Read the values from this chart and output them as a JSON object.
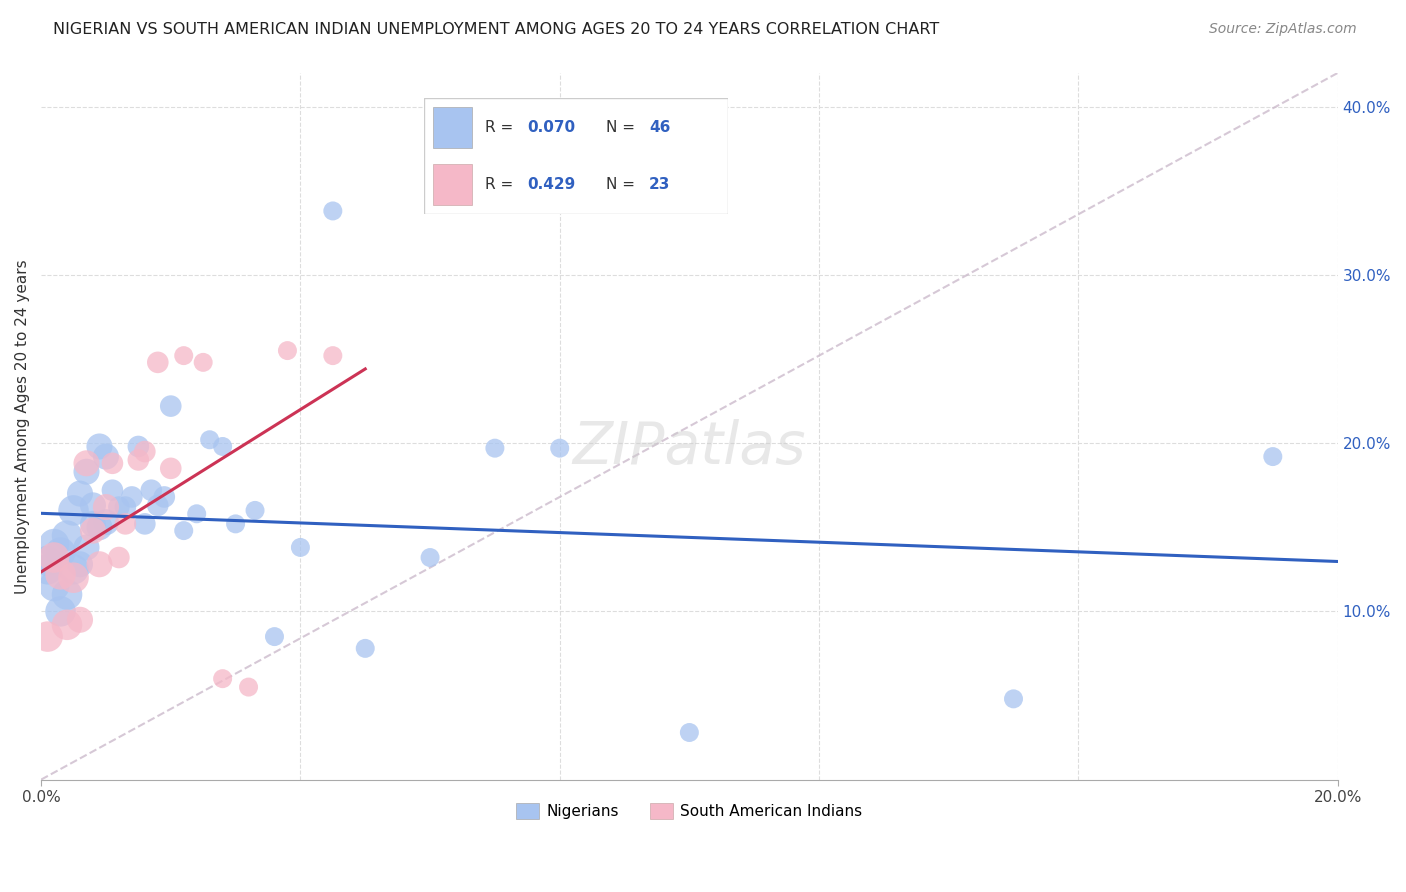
{
  "title": "NIGERIAN VS SOUTH AMERICAN INDIAN UNEMPLOYMENT AMONG AGES 20 TO 24 YEARS CORRELATION CHART",
  "source": "Source: ZipAtlas.com",
  "ylabel": "Unemployment Among Ages 20 to 24 years",
  "xlim": [
    0.0,
    0.2
  ],
  "ylim": [
    0.0,
    0.42
  ],
  "legend_r1": "R = 0.070",
  "legend_n1": "N = 46",
  "legend_r2": "R = 0.429",
  "legend_n2": "N = 23",
  "blue_scatter_color": "#A8C4F0",
  "pink_scatter_color": "#F5B8C8",
  "blue_line_color": "#3060C0",
  "pink_line_color": "#CC3355",
  "diagonal_line_color": "#CCBBCC",
  "grid_color": "#DDDDDD",
  "watermark": "ZIPatlas",
  "nigerians_x": [
    0.001,
    0.001,
    0.002,
    0.002,
    0.003,
    0.003,
    0.004,
    0.004,
    0.005,
    0.005,
    0.006,
    0.006,
    0.007,
    0.007,
    0.008,
    0.008,
    0.009,
    0.009,
    0.01,
    0.01,
    0.011,
    0.012,
    0.013,
    0.014,
    0.015,
    0.016,
    0.017,
    0.018,
    0.019,
    0.02,
    0.022,
    0.024,
    0.026,
    0.028,
    0.03,
    0.033,
    0.036,
    0.04,
    0.045,
    0.05,
    0.06,
    0.07,
    0.08,
    0.1,
    0.15,
    0.19
  ],
  "nigerians_y": [
    0.125,
    0.13,
    0.115,
    0.14,
    0.1,
    0.135,
    0.145,
    0.11,
    0.16,
    0.125,
    0.17,
    0.128,
    0.138,
    0.183,
    0.152,
    0.163,
    0.15,
    0.198,
    0.192,
    0.153,
    0.172,
    0.162,
    0.162,
    0.168,
    0.198,
    0.152,
    0.172,
    0.163,
    0.168,
    0.222,
    0.148,
    0.158,
    0.202,
    0.198,
    0.152,
    0.16,
    0.085,
    0.138,
    0.338,
    0.078,
    0.132,
    0.197,
    0.197,
    0.028,
    0.048,
    0.192
  ],
  "south_american_x": [
    0.001,
    0.002,
    0.003,
    0.004,
    0.005,
    0.006,
    0.007,
    0.008,
    0.009,
    0.01,
    0.011,
    0.012,
    0.013,
    0.015,
    0.016,
    0.018,
    0.02,
    0.022,
    0.025,
    0.028,
    0.032,
    0.038,
    0.045
  ],
  "south_american_y": [
    0.085,
    0.132,
    0.122,
    0.092,
    0.12,
    0.095,
    0.188,
    0.148,
    0.128,
    0.162,
    0.188,
    0.132,
    0.152,
    0.19,
    0.195,
    0.248,
    0.185,
    0.252,
    0.248,
    0.06,
    0.055,
    0.255,
    0.252
  ]
}
